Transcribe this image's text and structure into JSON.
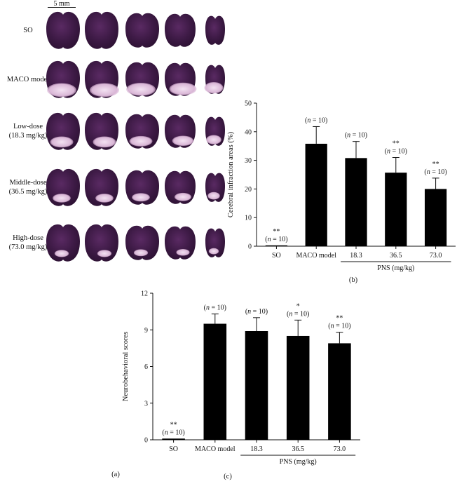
{
  "panel_a": {
    "scale_label": "5 mm",
    "panel_label": "(a)",
    "groups": [
      {
        "line1": "SO",
        "line2": ""
      },
      {
        "line1": "MACO model",
        "line2": ""
      },
      {
        "line1": "Low-dose",
        "line2": "(18.3 mg/kg)"
      },
      {
        "line1": "Middle-dose",
        "line2": "(36.5 mg/kg)"
      },
      {
        "line1": "High-dose",
        "line2": "(73.0 mg/kg)"
      }
    ],
    "colors": {
      "tissue": "#2a1030",
      "tissue_mid": "#3d1a45",
      "tissue_light": "#5a2a63",
      "infarct": "#f3e2f2"
    }
  },
  "chart_data": [
    {
      "type": "bar",
      "panel_label": "(b)",
      "categories": [
        "SO",
        "MACO model",
        "18.3",
        "36.5",
        "73.0"
      ],
      "values": [
        0.3,
        35.8,
        30.8,
        25.7,
        20.0
      ],
      "errors": [
        0,
        6.0,
        5.8,
        5.3,
        3.8
      ],
      "annotations": [
        {
          "sig": "**",
          "n": "(n = 10)"
        },
        {
          "sig": "",
          "n": "(n = 10)"
        },
        {
          "sig": "",
          "n": "(n = 10)"
        },
        {
          "sig": "**",
          "n": "(n = 10)"
        },
        {
          "sig": "**",
          "n": "(n = 10)"
        }
      ],
      "ylabel": "Cerebral infraction areas (%)",
      "ylim": [
        0,
        50
      ],
      "yticks": [
        "0",
        "10",
        "20",
        "30",
        "40",
        "50"
      ],
      "group_label": "PNS (mg/kg)",
      "bar_color": "#000000"
    },
    {
      "type": "bar",
      "panel_label": "(c)",
      "categories": [
        "SO",
        "MACO model",
        "18.3",
        "36.5",
        "73.0"
      ],
      "values": [
        0.1,
        9.5,
        8.9,
        8.5,
        7.9
      ],
      "errors": [
        0,
        0.8,
        1.1,
        1.3,
        0.9
      ],
      "annotations": [
        {
          "sig": "**",
          "n": "(n = 10)"
        },
        {
          "sig": "",
          "n": "(n = 10)"
        },
        {
          "sig": "",
          "n": "(n = 10)"
        },
        {
          "sig": "*",
          "n": "(n = 10)"
        },
        {
          "sig": "**",
          "n": "(n = 10)"
        }
      ],
      "ylabel": "Neurobehavioral scores",
      "ylim": [
        0,
        12
      ],
      "yticks": [
        "0",
        "3",
        "6",
        "9",
        "12"
      ],
      "group_label": "PNS (mg/kg)",
      "bar_color": "#000000"
    }
  ]
}
